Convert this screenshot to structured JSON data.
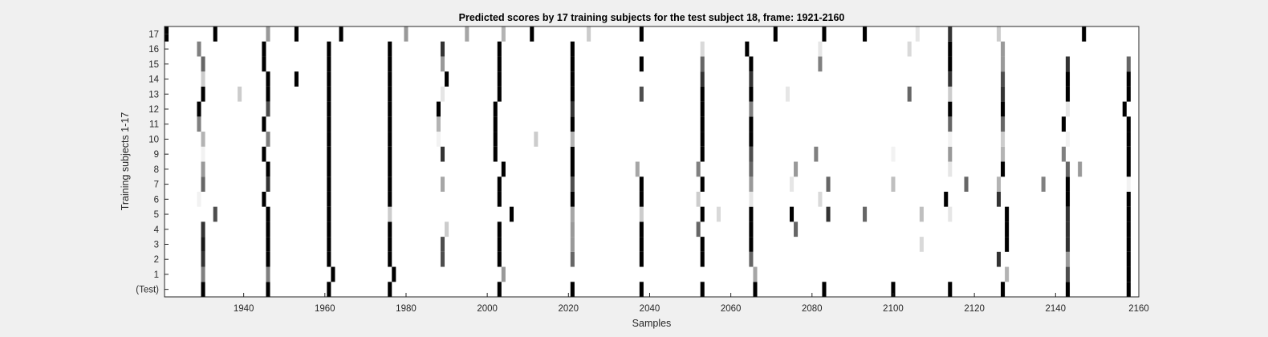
{
  "chart_data": {
    "type": "heatmap",
    "title": "Predicted scores by 17 training subjects for the test subject 18, frame: 1921-2160",
    "xlabel": "Samples",
    "ylabel": "Training subjects 1-17",
    "xlim": [
      1921,
      2160
    ],
    "xticks": [
      1940,
      1960,
      1980,
      2000,
      2020,
      2040,
      2060,
      2080,
      2100,
      2120,
      2140,
      2160
    ],
    "rows": [
      "(Test)",
      "1",
      "2",
      "3",
      "4",
      "5",
      "6",
      "7",
      "8",
      "9",
      "10",
      "11",
      "12",
      "13",
      "14",
      "15",
      "16",
      "17"
    ],
    "colormap": "gray (white = 0, black = 1)",
    "background": "#ffffff",
    "grid": false,
    "legend": "none",
    "marks": [
      {
        "row": "(Test)",
        "points": [
          [
            1930,
            1
          ],
          [
            1946,
            1
          ],
          [
            1961,
            1
          ],
          [
            1976,
            1
          ],
          [
            2003,
            1
          ],
          [
            2021,
            1
          ],
          [
            2038,
            1
          ],
          [
            2053,
            1
          ],
          [
            2066,
            1
          ],
          [
            2083,
            1
          ],
          [
            2100,
            1
          ],
          [
            2114,
            1
          ],
          [
            2127,
            1
          ],
          [
            2143,
            1
          ],
          [
            2158,
            1
          ]
        ]
      },
      {
        "row": "1",
        "points": [
          [
            1930,
            0.5
          ],
          [
            1946,
            0.5
          ],
          [
            1962,
            1
          ],
          [
            1977,
            1
          ],
          [
            2004,
            0.4
          ],
          [
            2066,
            0.35
          ],
          [
            2128,
            0.3
          ],
          [
            2143,
            0.7
          ],
          [
            2158,
            1
          ]
        ]
      },
      {
        "row": "2",
        "points": [
          [
            1930,
            0.8
          ],
          [
            1946,
            1
          ],
          [
            1961,
            1
          ],
          [
            1976,
            1
          ],
          [
            1989,
            0.7
          ],
          [
            2003,
            1
          ],
          [
            2021,
            0.6
          ],
          [
            2038,
            1
          ],
          [
            2053,
            1
          ],
          [
            2065,
            0.6
          ],
          [
            2126,
            0.8
          ],
          [
            2143,
            0.4
          ],
          [
            2158,
            1
          ]
        ]
      },
      {
        "row": "3",
        "points": [
          [
            1930,
            0.9
          ],
          [
            1946,
            1
          ],
          [
            1961,
            1
          ],
          [
            1976,
            1
          ],
          [
            1989,
            0.7
          ],
          [
            2003,
            1
          ],
          [
            2021,
            0.4
          ],
          [
            2038,
            1
          ],
          [
            2053,
            1
          ],
          [
            2065,
            1
          ],
          [
            2107,
            0.15
          ],
          [
            2128,
            1
          ],
          [
            2143,
            0.8
          ],
          [
            2158,
            1
          ]
        ]
      },
      {
        "row": "4",
        "points": [
          [
            1930,
            0.8
          ],
          [
            1946,
            1
          ],
          [
            1961,
            1
          ],
          [
            1976,
            1
          ],
          [
            1990,
            0.2
          ],
          [
            2003,
            1
          ],
          [
            2021,
            0.4
          ],
          [
            2038,
            1
          ],
          [
            2052,
            0.6
          ],
          [
            2065,
            1
          ],
          [
            2076,
            0.6
          ],
          [
            2128,
            1
          ],
          [
            2143,
            0.8
          ],
          [
            2158,
            1
          ]
        ]
      },
      {
        "row": "5",
        "points": [
          [
            1933,
            0.7
          ],
          [
            1946,
            1
          ],
          [
            1961,
            1
          ],
          [
            1976,
            0.2
          ],
          [
            2006,
            1
          ],
          [
            2021,
            0.35
          ],
          [
            2038,
            0.2
          ],
          [
            2053,
            1
          ],
          [
            2057,
            0.15
          ],
          [
            2065,
            1
          ],
          [
            2075,
            1
          ],
          [
            2084,
            0.8
          ],
          [
            2093,
            0.6
          ],
          [
            2107,
            0.25
          ],
          [
            2114,
            0.1
          ],
          [
            2128,
            1
          ],
          [
            2143,
            0.8
          ],
          [
            2158,
            1
          ]
        ]
      },
      {
        "row": "6",
        "points": [
          [
            1929,
            0.05
          ],
          [
            1945,
            1
          ],
          [
            1961,
            1
          ],
          [
            1976,
            1
          ],
          [
            2003,
            1
          ],
          [
            2021,
            1
          ],
          [
            2038,
            1
          ],
          [
            2052,
            0.2
          ],
          [
            2065,
            0.1
          ],
          [
            2082,
            0.15
          ],
          [
            2113,
            1
          ],
          [
            2126,
            0.8
          ],
          [
            2143,
            1
          ],
          [
            2158,
            1
          ]
        ]
      },
      {
        "row": "7",
        "points": [
          [
            1930,
            0.6
          ],
          [
            1946,
            0.8
          ],
          [
            1961,
            1
          ],
          [
            1976,
            1
          ],
          [
            1989,
            0.35
          ],
          [
            2003,
            1
          ],
          [
            2021,
            0.7
          ],
          [
            2038,
            1
          ],
          [
            2053,
            1
          ],
          [
            2065,
            0.4
          ],
          [
            2075,
            0.1
          ],
          [
            2084,
            0.6
          ],
          [
            2100,
            0.25
          ],
          [
            2118,
            0.6
          ],
          [
            2126,
            0.3
          ],
          [
            2137,
            0.5
          ],
          [
            2143,
            1
          ],
          [
            2158,
            0.05
          ]
        ]
      },
      {
        "row": "8",
        "points": [
          [
            1930,
            0.4
          ],
          [
            1946,
            1
          ],
          [
            1961,
            1
          ],
          [
            1976,
            1
          ],
          [
            2004,
            1
          ],
          [
            2021,
            1
          ],
          [
            2037,
            0.35
          ],
          [
            2052,
            0.5
          ],
          [
            2065,
            0.6
          ],
          [
            2076,
            0.4
          ],
          [
            2114,
            0.1
          ],
          [
            2127,
            1
          ],
          [
            2143,
            0.6
          ],
          [
            2146,
            0.4
          ],
          [
            2158,
            1
          ]
        ]
      },
      {
        "row": "9",
        "points": [
          [
            1930,
            0.05
          ],
          [
            1945,
            1
          ],
          [
            1961,
            1
          ],
          [
            1976,
            1
          ],
          [
            1989,
            0.8
          ],
          [
            2002,
            1
          ],
          [
            2021,
            1
          ],
          [
            2053,
            1
          ],
          [
            2065,
            0.7
          ],
          [
            2081,
            0.5
          ],
          [
            2100,
            0.05
          ],
          [
            2114,
            0.4
          ],
          [
            2127,
            0.3
          ],
          [
            2142,
            0.5
          ],
          [
            2158,
            1
          ]
        ]
      },
      {
        "row": "10",
        "points": [
          [
            1930,
            0.3
          ],
          [
            1946,
            0.5
          ],
          [
            1961,
            1
          ],
          [
            1976,
            1
          ],
          [
            1988,
            0.05
          ],
          [
            2002,
            1
          ],
          [
            2012,
            0.2
          ],
          [
            2021,
            0.3
          ],
          [
            2053,
            1
          ],
          [
            2065,
            1
          ],
          [
            2114,
            0.05
          ],
          [
            2127,
            0.2
          ],
          [
            2143,
            0.05
          ],
          [
            2158,
            1
          ]
        ]
      },
      {
        "row": "11",
        "points": [
          [
            1929,
            0.5
          ],
          [
            1945,
            1
          ],
          [
            1961,
            1
          ],
          [
            1976,
            1
          ],
          [
            1988,
            0.3
          ],
          [
            2002,
            1
          ],
          [
            2021,
            1
          ],
          [
            2053,
            1
          ],
          [
            2065,
            1
          ],
          [
            2114,
            0.6
          ],
          [
            2127,
            0.6
          ],
          [
            2142,
            1
          ],
          [
            2158,
            1
          ]
        ]
      },
      {
        "row": "12",
        "points": [
          [
            1929,
            1
          ],
          [
            1946,
            0.7
          ],
          [
            1961,
            1
          ],
          [
            1976,
            1
          ],
          [
            1988,
            1
          ],
          [
            2002,
            1
          ],
          [
            2021,
            0.8
          ],
          [
            2053,
            1
          ],
          [
            2065,
            0.5
          ],
          [
            2114,
            1
          ],
          [
            2127,
            1
          ],
          [
            2143,
            0.1
          ],
          [
            2157,
            1
          ]
        ]
      },
      {
        "row": "13",
        "points": [
          [
            1930,
            1
          ],
          [
            1939,
            0.2
          ],
          [
            1946,
            1
          ],
          [
            1961,
            1
          ],
          [
            1976,
            1
          ],
          [
            1989,
            0.1
          ],
          [
            2003,
            1
          ],
          [
            2021,
            1
          ],
          [
            2038,
            0.7
          ],
          [
            2053,
            1
          ],
          [
            2065,
            1
          ],
          [
            2074,
            0.1
          ],
          [
            2104,
            0.6
          ],
          [
            2114,
            0.2
          ],
          [
            2127,
            0.8
          ],
          [
            2143,
            1
          ],
          [
            2158,
            1
          ]
        ]
      },
      {
        "row": "14",
        "points": [
          [
            1930,
            0.2
          ],
          [
            1946,
            1
          ],
          [
            1953,
            1
          ],
          [
            1961,
            1
          ],
          [
            1976,
            1
          ],
          [
            1990,
            1
          ],
          [
            2003,
            1
          ],
          [
            2021,
            1
          ],
          [
            2053,
            0.8
          ],
          [
            2065,
            0.8
          ],
          [
            2114,
            0.8
          ],
          [
            2127,
            0.7
          ],
          [
            2143,
            1
          ],
          [
            2158,
            1
          ]
        ]
      },
      {
        "row": "15",
        "points": [
          [
            1930,
            0.6
          ],
          [
            1945,
            1
          ],
          [
            1961,
            1
          ],
          [
            1976,
            1
          ],
          [
            1989,
            0.4
          ],
          [
            2003,
            1
          ],
          [
            2021,
            1
          ],
          [
            2038,
            1
          ],
          [
            2053,
            0.6
          ],
          [
            2065,
            1
          ],
          [
            2082,
            0.5
          ],
          [
            2114,
            1
          ],
          [
            2127,
            0.4
          ],
          [
            2143,
            0.8
          ],
          [
            2158,
            0.6
          ]
        ]
      },
      {
        "row": "16",
        "points": [
          [
            1929,
            0.5
          ],
          [
            1945,
            1
          ],
          [
            1961,
            1
          ],
          [
            1976,
            1
          ],
          [
            1989,
            0.8
          ],
          [
            2003,
            1
          ],
          [
            2021,
            1
          ],
          [
            2053,
            0.15
          ],
          [
            2064,
            1
          ],
          [
            2082,
            0.1
          ],
          [
            2104,
            0.15
          ],
          [
            2114,
            1
          ],
          [
            2127,
            0.4
          ]
        ]
      },
      {
        "row": "17",
        "points": [
          [
            1921,
            1
          ],
          [
            1933,
            1
          ],
          [
            1946,
            0.4
          ],
          [
            1953,
            1
          ],
          [
            1964,
            1
          ],
          [
            1980,
            0.4
          ],
          [
            1995,
            0.35
          ],
          [
            2004,
            0.3
          ],
          [
            2011,
            1
          ],
          [
            2025,
            0.2
          ],
          [
            2038,
            1
          ],
          [
            2071,
            1
          ],
          [
            2083,
            1
          ],
          [
            2093,
            1
          ],
          [
            2106,
            0.1
          ],
          [
            2114,
            0.8
          ],
          [
            2126,
            0.2
          ],
          [
            2147,
            1
          ]
        ]
      }
    ]
  }
}
